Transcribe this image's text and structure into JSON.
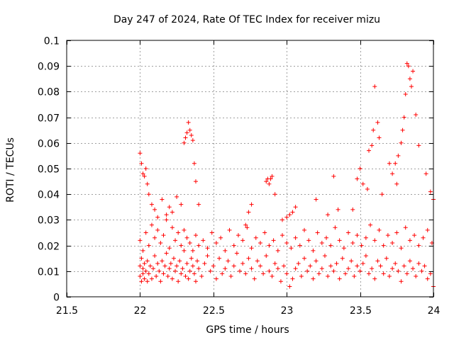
{
  "chart_data": {
    "type": "scatter",
    "title": "Day 247 of 2024, Rate Of TEC Index for receiver mizu",
    "xlabel": "GPS time / hours",
    "ylabel": "ROTI / TECUs",
    "xlim": [
      21.5,
      24
    ],
    "ylim": [
      0,
      0.1
    ],
    "xticks": [
      "21.5",
      "22",
      "22.5",
      "23",
      "23.5",
      "24"
    ],
    "yticks": [
      "0",
      "0.01",
      "0.02",
      "0.03",
      "0.04",
      "0.05",
      "0.06",
      "0.07",
      "0.08",
      "0.09",
      "0.1"
    ],
    "grid": true,
    "marker": "+",
    "color": "#ff0000",
    "series": [
      {
        "name": "ROTI",
        "x": [
          22.0,
          22.0,
          22.01,
          22.01,
          22.02,
          22.02,
          22.03,
          22.03,
          22.04,
          22.05,
          22.05,
          22.06,
          22.07,
          22.08,
          22.09,
          22.1,
          22.11,
          22.12,
          22.13,
          22.14,
          22.15,
          22.16,
          22.17,
          22.18,
          22.19,
          22.2,
          22.21,
          22.22,
          22.23,
          22.24,
          22.25,
          22.26,
          22.27,
          22.28,
          22.29,
          22.3,
          22.31,
          22.32,
          22.33,
          22.34,
          22.35,
          22.36,
          22.37,
          22.38,
          22.39,
          22.4,
          22.42,
          22.44,
          22.46,
          22.48,
          22.5,
          22.52,
          22.54,
          22.56,
          22.58,
          22.6,
          22.62,
          22.64,
          22.66,
          22.68,
          22.7,
          22.72,
          22.74,
          22.76,
          22.78,
          22.8,
          22.82,
          22.84,
          22.86,
          22.88,
          22.9,
          22.92,
          22.94,
          22.96,
          22.98,
          23.0,
          23.02,
          23.04,
          23.06,
          23.08,
          23.1,
          23.12,
          23.14,
          23.16,
          23.18,
          23.2,
          23.22,
          23.24,
          23.26,
          23.28,
          23.3,
          23.32,
          23.34,
          23.36,
          23.38,
          23.4,
          23.42,
          23.44,
          23.46,
          23.48,
          23.5,
          23.52,
          23.54,
          23.56,
          23.58,
          23.6,
          23.62,
          23.64,
          23.66,
          23.68,
          23.7,
          23.72,
          23.74,
          23.76,
          23.78,
          23.8,
          23.82,
          23.84,
          23.86,
          23.88,
          23.9,
          23.92,
          23.94,
          23.96,
          23.98,
          24.0,
          22.0,
          22.02,
          22.04,
          22.06,
          22.08,
          22.1,
          22.12,
          22.14,
          22.16,
          22.18,
          22.2,
          22.22,
          22.24,
          22.26,
          22.28,
          22.3,
          22.32,
          22.34,
          22.36,
          22.38,
          22.4,
          22.43,
          22.46,
          22.49,
          22.52,
          22.55,
          22.58,
          22.61,
          22.64,
          22.67,
          22.7,
          22.73,
          22.76,
          22.79,
          22.82,
          22.85,
          22.88,
          22.91,
          22.94,
          22.97,
          23.0,
          23.03,
          23.06,
          23.09,
          23.12,
          23.15,
          23.18,
          23.21,
          23.24,
          23.27,
          23.3,
          23.33,
          23.36,
          23.39,
          23.42,
          23.45,
          23.48,
          23.51,
          23.54,
          23.57,
          23.6,
          23.63,
          23.66,
          23.69,
          23.72,
          23.75,
          23.78,
          23.81,
          23.84,
          23.87,
          23.9,
          23.93,
          23.96,
          23.99,
          22.0,
          22.01,
          22.02,
          22.03,
          22.04,
          22.05,
          22.06,
          22.08,
          22.1,
          22.12,
          22.15,
          22.18,
          22.2,
          22.22,
          22.25,
          22.28,
          22.3,
          22.31,
          22.32,
          22.33,
          22.34,
          22.35,
          22.36,
          22.37,
          22.38,
          22.4,
          22.72,
          22.74,
          22.76,
          22.86,
          22.87,
          22.88,
          22.89,
          22.9,
          22.92,
          22.97,
          23.0,
          23.02,
          23.04,
          23.06,
          23.2,
          23.28,
          23.32,
          23.35,
          23.45,
          23.48,
          23.5,
          23.52,
          23.55,
          23.56,
          23.58,
          23.59,
          23.6,
          23.62,
          23.63,
          23.65,
          23.7,
          23.72,
          23.74,
          23.75,
          23.76,
          23.78,
          23.79,
          23.8,
          23.81,
          23.82,
          23.83,
          23.84,
          23.85,
          23.86,
          23.88,
          23.9,
          23.95,
          23.98,
          24.0
        ],
        "y": [
          0.008,
          0.012,
          0.006,
          0.015,
          0.009,
          0.011,
          0.007,
          0.013,
          0.01,
          0.006,
          0.014,
          0.009,
          0.012,
          0.007,
          0.011,
          0.016,
          0.008,
          0.013,
          0.01,
          0.006,
          0.014,
          0.009,
          0.012,
          0.017,
          0.008,
          0.011,
          0.013,
          0.007,
          0.015,
          0.01,
          0.012,
          0.006,
          0.014,
          0.009,
          0.011,
          0.018,
          0.008,
          0.013,
          0.007,
          0.01,
          0.015,
          0.012,
          0.009,
          0.006,
          0.014,
          0.011,
          0.008,
          0.013,
          0.016,
          0.01,
          0.012,
          0.007,
          0.015,
          0.009,
          0.011,
          0.014,
          0.008,
          0.012,
          0.017,
          0.01,
          0.013,
          0.009,
          0.015,
          0.011,
          0.007,
          0.014,
          0.012,
          0.009,
          0.016,
          0.01,
          0.008,
          0.013,
          0.011,
          0.006,
          0.012,
          0.009,
          0.004,
          0.007,
          0.011,
          0.013,
          0.008,
          0.015,
          0.01,
          0.012,
          0.007,
          0.014,
          0.009,
          0.011,
          0.016,
          0.008,
          0.012,
          0.01,
          0.013,
          0.007,
          0.015,
          0.009,
          0.011,
          0.014,
          0.008,
          0.012,
          0.01,
          0.013,
          0.016,
          0.009,
          0.011,
          0.007,
          0.014,
          0.012,
          0.009,
          0.015,
          0.008,
          0.011,
          0.013,
          0.01,
          0.006,
          0.012,
          0.009,
          0.014,
          0.011,
          0.008,
          0.013,
          0.01,
          0.012,
          0.007,
          0.009,
          0.004,
          0.022,
          0.018,
          0.025,
          0.02,
          0.028,
          0.023,
          0.026,
          0.021,
          0.024,
          0.03,
          0.019,
          0.027,
          0.022,
          0.025,
          0.02,
          0.026,
          0.023,
          0.021,
          0.018,
          0.024,
          0.02,
          0.022,
          0.019,
          0.025,
          0.021,
          0.023,
          0.018,
          0.026,
          0.02,
          0.024,
          0.022,
          0.027,
          0.019,
          0.023,
          0.021,
          0.025,
          0.02,
          0.022,
          0.018,
          0.024,
          0.021,
          0.019,
          0.023,
          0.02,
          0.026,
          0.022,
          0.018,
          0.025,
          0.021,
          0.023,
          0.02,
          0.027,
          0.022,
          0.019,
          0.025,
          0.021,
          0.024,
          0.02,
          0.023,
          0.028,
          0.022,
          0.026,
          0.02,
          0.024,
          0.021,
          0.025,
          0.019,
          0.027,
          0.022,
          0.024,
          0.02,
          0.023,
          0.026,
          0.021,
          0.056,
          0.052,
          0.048,
          0.047,
          0.05,
          0.044,
          0.04,
          0.036,
          0.034,
          0.031,
          0.038,
          0.032,
          0.035,
          0.033,
          0.039,
          0.036,
          0.06,
          0.062,
          0.064,
          0.068,
          0.065,
          0.063,
          0.061,
          0.052,
          0.045,
          0.036,
          0.028,
          0.033,
          0.036,
          0.045,
          0.046,
          0.044,
          0.046,
          0.047,
          0.04,
          0.03,
          0.031,
          0.032,
          0.033,
          0.035,
          0.038,
          0.032,
          0.047,
          0.034,
          0.034,
          0.046,
          0.05,
          0.044,
          0.042,
          0.057,
          0.059,
          0.065,
          0.082,
          0.068,
          0.062,
          0.04,
          0.052,
          0.048,
          0.052,
          0.044,
          0.055,
          0.06,
          0.065,
          0.07,
          0.079,
          0.091,
          0.09,
          0.085,
          0.082,
          0.088,
          0.071,
          0.059,
          0.048,
          0.041,
          0.038
        ]
      }
    ]
  }
}
